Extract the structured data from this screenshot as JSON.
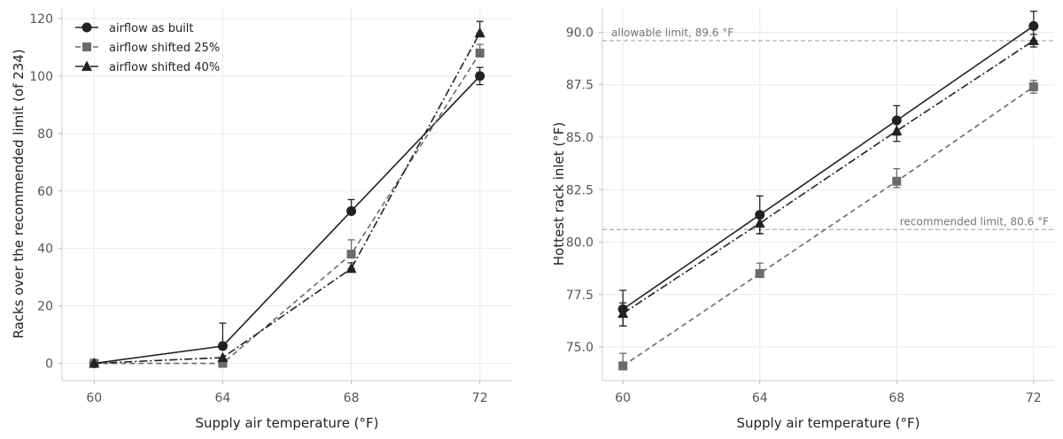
{
  "chart_data": [
    {
      "type": "line",
      "xlabel": "Supply air temperature (°F)",
      "ylabel": "Racks over the recommended limit (of 234)",
      "x": [
        60,
        64,
        68,
        72
      ],
      "xticks": [
        "60",
        "64",
        "68",
        "72"
      ],
      "xlim": [
        59,
        73
      ],
      "yticks": [
        "0",
        "20",
        "40",
        "60",
        "80",
        "100",
        "120"
      ],
      "ytick_values": [
        0,
        20,
        40,
        60,
        80,
        100,
        120
      ],
      "ylim": [
        -6,
        124
      ],
      "grid": true,
      "legend_position": "top-left",
      "series": [
        {
          "name": "airflow as built",
          "marker": "circle",
          "dash": "solid",
          "color": "#222222",
          "values": [
            0,
            6,
            53,
            100
          ],
          "err_low": [
            0,
            1,
            1,
            3
          ],
          "err_high": [
            0,
            8,
            4,
            3
          ]
        },
        {
          "name": "airflow shifted 25%",
          "marker": "square",
          "dash": "dashed",
          "color": "#6b6b6b",
          "values": [
            0,
            0,
            38,
            108
          ],
          "err_low": [
            0,
            0,
            0,
            0
          ],
          "err_high": [
            0,
            0,
            5,
            3
          ]
        },
        {
          "name": "airflow shifted 40%",
          "marker": "triangle",
          "dash": "dashdot",
          "color": "#222222",
          "values": [
            0,
            2,
            33,
            115
          ],
          "err_low": [
            0,
            0,
            0,
            0
          ],
          "err_high": [
            0,
            0,
            2,
            4
          ]
        }
      ]
    },
    {
      "type": "line",
      "xlabel": "Supply air temperature (°F)",
      "ylabel": "Hottest rack inlet (°F)",
      "x": [
        60,
        64,
        68,
        72
      ],
      "xticks": [
        "60",
        "64",
        "68",
        "72"
      ],
      "xlim": [
        59.4,
        72.6
      ],
      "yticks": [
        "75.0",
        "77.5",
        "80.0",
        "82.5",
        "85.0",
        "87.5",
        "90.0"
      ],
      "ytick_values": [
        75,
        77.5,
        80,
        82.5,
        85,
        87.5,
        90
      ],
      "ylim": [
        73.4,
        91.2
      ],
      "grid": true,
      "reference_lines": [
        {
          "value": 89.6,
          "label": "allowable limit, 89.6 °F",
          "anchor": "left"
        },
        {
          "value": 80.6,
          "label": "recommended limit, 80.6 °F",
          "anchor": "right"
        }
      ],
      "series": [
        {
          "name": "airflow as built",
          "marker": "circle",
          "dash": "solid",
          "color": "#222222",
          "values": [
            76.8,
            81.3,
            85.8,
            90.3
          ],
          "err_low": [
            0.8,
            0.9,
            0.7,
            0.7
          ],
          "err_high": [
            0.9,
            0.9,
            0.7,
            0.7
          ]
        },
        {
          "name": "airflow shifted 25%",
          "marker": "square",
          "dash": "dashed",
          "color": "#6b6b6b",
          "values": [
            74.1,
            78.5,
            82.9,
            87.4
          ],
          "err_low": [
            0.0,
            0.0,
            0.3,
            0.3
          ],
          "err_high": [
            0.6,
            0.5,
            0.6,
            0.3
          ]
        },
        {
          "name": "airflow shifted 40%",
          "marker": "triangle",
          "dash": "dashdot",
          "color": "#222222",
          "values": [
            76.6,
            80.9,
            85.3,
            89.6
          ],
          "err_low": [
            0.6,
            0.5,
            0.5,
            0.3
          ],
          "err_high": [
            0.5,
            0.5,
            0.5,
            0.3
          ]
        }
      ]
    }
  ]
}
